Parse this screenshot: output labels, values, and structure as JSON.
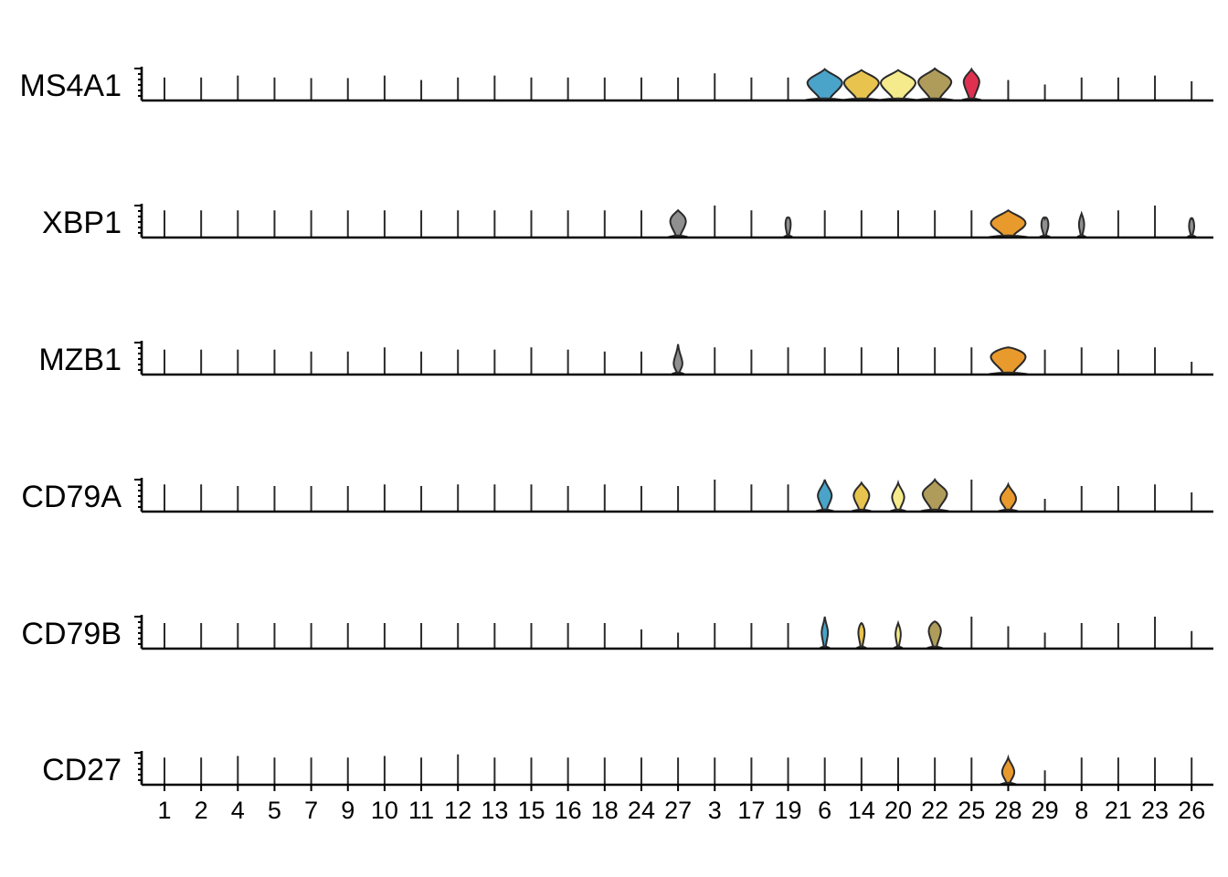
{
  "chart_data": {
    "type": "stacked-violin",
    "title": "",
    "xlabel": "",
    "ylabel": "",
    "clusters": [
      "1",
      "2",
      "4",
      "5",
      "7",
      "9",
      "10",
      "11",
      "12",
      "13",
      "15",
      "16",
      "18",
      "24",
      "27",
      "3",
      "17",
      "19",
      "6",
      "14",
      "20",
      "22",
      "25",
      "28",
      "29",
      "8",
      "21",
      "23",
      "26"
    ],
    "cluster_colors": {
      "27": "#8f8f8f",
      "19": "#8f8f8f",
      "6": "#4aa3c9",
      "14": "#e8c34e",
      "20": "#f5ea8c",
      "22": "#b09c5a",
      "25": "#e0304f",
      "28": "#e99a2c",
      "29": "#8f8f8f",
      "8": "#8f8f8f",
      "26": "#8f8f8f"
    },
    "genes": [
      {
        "name": "MS4A1",
        "max_expression": [
          0.72,
          0.72,
          0.78,
          0.72,
          0.7,
          0.7,
          0.78,
          0.64,
          0.72,
          0.78,
          0.72,
          0.72,
          0.72,
          0.72,
          0.72,
          0.85,
          0.72,
          0.72,
          0.98,
          0.95,
          0.95,
          1.0,
          0.98,
          0.64,
          0.5,
          0.72,
          0.72,
          0.78,
          0.6
        ],
        "bulge": [
          0,
          0,
          0,
          0,
          0,
          0,
          0,
          0,
          0,
          0,
          0,
          0,
          0,
          0,
          0,
          0,
          0,
          0,
          1.0,
          1.0,
          1.0,
          0.95,
          0.45,
          0,
          0,
          0,
          0,
          0,
          0
        ],
        "center": [
          0,
          0,
          0,
          0,
          0,
          0,
          0,
          0,
          0,
          0,
          0,
          0,
          0,
          0,
          0,
          0,
          0,
          0,
          0.55,
          0.55,
          0.55,
          0.58,
          0.58,
          0,
          0,
          0,
          0,
          0,
          0
        ]
      },
      {
        "name": "XBP1",
        "max_expression": [
          0.85,
          0.85,
          0.85,
          0.85,
          0.85,
          0.85,
          0.85,
          0.85,
          0.85,
          0.85,
          0.85,
          0.85,
          0.85,
          0.85,
          0.85,
          1.0,
          0.85,
          0.6,
          0.85,
          0.85,
          0.85,
          0.85,
          0.85,
          0.85,
          0.6,
          0.75,
          0.85,
          1.0,
          0.6
        ],
        "bulge": [
          0,
          0,
          0,
          0,
          0,
          0,
          0,
          0,
          0,
          0,
          0,
          0,
          0,
          0,
          0.45,
          0,
          0,
          0.15,
          0,
          0,
          0,
          0,
          0,
          1.0,
          0.2,
          0.15,
          0,
          0,
          0.15
        ],
        "center": [
          0,
          0,
          0,
          0,
          0,
          0,
          0,
          0,
          0,
          0,
          0,
          0,
          0,
          0,
          0.5,
          0,
          0,
          0.4,
          0,
          0,
          0,
          0,
          0,
          0.45,
          0.4,
          0.4,
          0,
          0,
          0.35
        ]
      },
      {
        "name": "MZB1",
        "max_expression": [
          0.78,
          0.78,
          0.78,
          0.78,
          0.72,
          0.72,
          0.85,
          0.72,
          0.78,
          0.78,
          0.85,
          0.78,
          0.72,
          0.72,
          0.95,
          0.85,
          0.78,
          0.85,
          0.85,
          0.85,
          0.85,
          0.85,
          0.85,
          0.85,
          0.78,
          0.85,
          0.78,
          0.85,
          0.4
        ],
        "bulge": [
          0,
          0,
          0,
          0,
          0,
          0,
          0,
          0,
          0,
          0,
          0,
          0,
          0,
          0,
          0.25,
          0,
          0,
          0,
          0,
          0,
          0,
          0,
          0,
          1.0,
          0,
          0,
          0,
          0,
          0
        ],
        "center": [
          0,
          0,
          0,
          0,
          0,
          0,
          0,
          0,
          0,
          0,
          0,
          0,
          0,
          0,
          0.35,
          0,
          0,
          0,
          0,
          0,
          0,
          0,
          0,
          0.55,
          0,
          0,
          0,
          0,
          0
        ]
      },
      {
        "name": "CD79A",
        "max_expression": [
          0.85,
          0.85,
          0.8,
          0.8,
          0.8,
          0.8,
          0.85,
          0.8,
          0.85,
          0.85,
          0.85,
          0.8,
          0.85,
          0.8,
          0.8,
          1.0,
          0.85,
          0.85,
          1.0,
          0.9,
          0.9,
          1.0,
          1.0,
          0.85,
          0.4,
          0.8,
          0.8,
          0.85,
          0.6
        ],
        "bulge": [
          0,
          0,
          0,
          0,
          0,
          0,
          0,
          0,
          0,
          0,
          0,
          0,
          0,
          0,
          0,
          0,
          0,
          0,
          0.4,
          0.45,
          0.35,
          0.7,
          0,
          0.45,
          0,
          0,
          0,
          0,
          0
        ],
        "center": [
          0,
          0,
          0,
          0,
          0,
          0,
          0,
          0,
          0,
          0,
          0,
          0,
          0,
          0,
          0,
          0,
          0,
          0,
          0.5,
          0.5,
          0.45,
          0.55,
          0,
          0.4,
          0,
          0,
          0,
          0,
          0
        ]
      },
      {
        "name": "CD79B",
        "max_expression": [
          0.8,
          0.8,
          0.8,
          0.8,
          0.8,
          0.8,
          0.8,
          0.8,
          0.8,
          0.8,
          0.8,
          0.8,
          0.8,
          0.6,
          0.5,
          0.8,
          0.8,
          0.8,
          1.0,
          0.8,
          0.8,
          0.85,
          1.0,
          0.7,
          0.5,
          0.8,
          0.8,
          1.0,
          0.55
        ],
        "bulge": [
          0,
          0,
          0,
          0,
          0,
          0,
          0,
          0,
          0,
          0,
          0,
          0,
          0,
          0,
          0,
          0,
          0,
          0,
          0.18,
          0.18,
          0.15,
          0.35,
          0,
          0,
          0,
          0,
          0,
          0,
          0
        ],
        "center": [
          0,
          0,
          0,
          0,
          0,
          0,
          0,
          0,
          0,
          0,
          0,
          0,
          0,
          0,
          0,
          0,
          0,
          0,
          0.5,
          0.5,
          0.45,
          0.55,
          0,
          0,
          0,
          0,
          0,
          0,
          0
        ]
      },
      {
        "name": "CD27",
        "max_expression": [
          0.85,
          0.85,
          0.9,
          0.85,
          0.85,
          0.85,
          0.9,
          0.85,
          0.95,
          0.85,
          0.85,
          0.85,
          0.85,
          0.85,
          0.85,
          0.85,
          0.85,
          0.85,
          0.85,
          0.85,
          0.85,
          0.85,
          0.85,
          0.85,
          0.45,
          0.85,
          0.85,
          0.85,
          0.85
        ],
        "bulge": [
          0,
          0,
          0,
          0,
          0,
          0,
          0,
          0,
          0,
          0,
          0,
          0,
          0,
          0,
          0,
          0,
          0,
          0,
          0,
          0,
          0,
          0,
          0,
          0.35,
          0,
          0,
          0,
          0,
          0
        ],
        "center": [
          0,
          0,
          0,
          0,
          0,
          0,
          0,
          0,
          0,
          0,
          0,
          0,
          0,
          0,
          0,
          0,
          0,
          0,
          0,
          0,
          0,
          0,
          0,
          0.4,
          0,
          0,
          0,
          0,
          0
        ]
      }
    ]
  }
}
